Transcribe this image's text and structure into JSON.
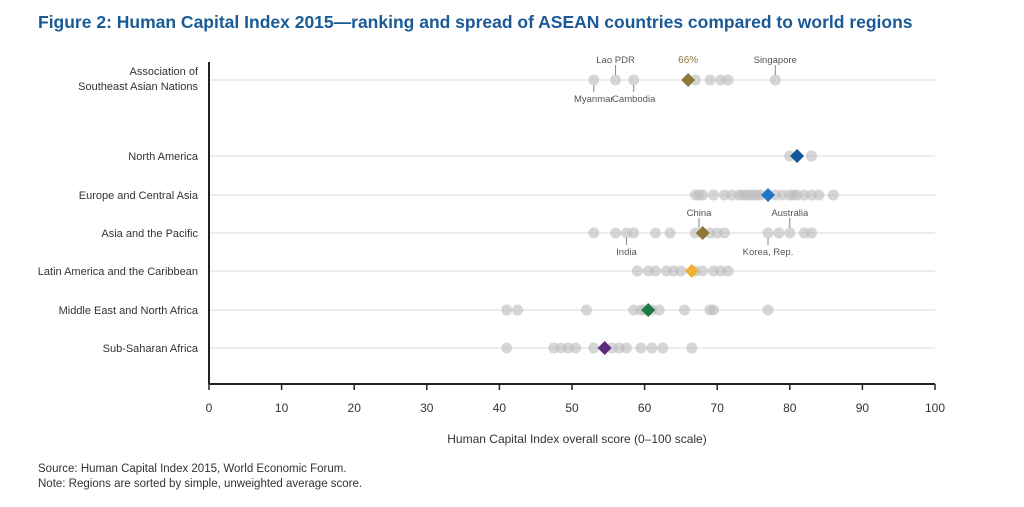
{
  "title": "Figure 2: Human Capital Index 2015—ranking and spread of ASEAN countries compared to world regions",
  "notes": {
    "source": "Source: Human Capital Index 2015, World Economic Forum.",
    "note": "Note: Regions are sorted by simple, unweighted average score."
  },
  "colors": {
    "asean": "#8c7a3a",
    "asia_pacific": "#8c7a3a",
    "north_america": "#15539a",
    "europe": "#2278c4",
    "latin_america": "#f0b030",
    "mena": "#1e7a45",
    "ssa": "#5c2e7a",
    "country_dot": "#bdbdbd",
    "grid": "#d9d9d9",
    "axis": "#222222"
  },
  "chart_data": {
    "type": "scatter",
    "xlabel": "Human Capital Index overall score (0–100 scale)",
    "xlim": [
      0,
      100
    ],
    "xticks": [
      0,
      10,
      20,
      30,
      40,
      50,
      60,
      70,
      80,
      90,
      100
    ],
    "grid": "horizontal row lines",
    "series": [
      {
        "name": "Association of Southeast Asian Nations",
        "label_lines": [
          "Association of",
          "Southeast Asian Nations"
        ],
        "average": 66,
        "average_label": "66%",
        "color": "asean",
        "countries": [
          53,
          56,
          58.5,
          67,
          69,
          70.5,
          71.5,
          78
        ],
        "annotations": [
          {
            "text": "Lao PDR",
            "x": 56,
            "pos": "above"
          },
          {
            "text": "Singapore",
            "x": 78,
            "pos": "above"
          },
          {
            "text": "Myanmar",
            "x": 53,
            "pos": "below"
          },
          {
            "text": "Cambodia",
            "x": 58.5,
            "pos": "below"
          }
        ]
      },
      {
        "name": "North America",
        "average": 81,
        "color": "north_america",
        "countries": [
          80,
          83
        ]
      },
      {
        "name": "Europe and Central Asia",
        "average": 77,
        "color": "europe",
        "countries": [
          67,
          67.5,
          68,
          69.5,
          71,
          72,
          73,
          73.5,
          74,
          74.5,
          75,
          75.5,
          76,
          78,
          79,
          80,
          80.5,
          81,
          82,
          83,
          84,
          86
        ]
      },
      {
        "name": "Asia and the Pacific",
        "average": 68,
        "color": "asia_pacific",
        "countries": [
          53,
          56,
          57.5,
          58.5,
          61.5,
          63.5,
          67,
          69,
          70,
          71,
          77,
          78.5,
          80,
          82,
          83
        ],
        "annotations": [
          {
            "text": "China",
            "x": 67.5,
            "pos": "above"
          },
          {
            "text": "Australia",
            "x": 80,
            "pos": "above"
          },
          {
            "text": "India",
            "x": 57.5,
            "pos": "below"
          },
          {
            "text": "Korea, Rep.",
            "x": 77,
            "pos": "below"
          }
        ]
      },
      {
        "name": "Latin America and the Caribbean",
        "average": 66.5,
        "color": "latin_america",
        "countries": [
          59,
          60.5,
          61.5,
          63,
          64,
          65,
          67,
          68,
          69.5,
          70.5,
          71.5
        ]
      },
      {
        "name": "Middle East and North Africa",
        "average": 60.5,
        "color": "mena",
        "countries": [
          41,
          42.5,
          52,
          58.5,
          59.5,
          60,
          61,
          62,
          65.5,
          69,
          69.5,
          77
        ]
      },
      {
        "name": "Sub-Saharan Africa",
        "average": 54.5,
        "color": "ssa",
        "countries": [
          41,
          47.5,
          48.5,
          49.5,
          50.5,
          53,
          55.5,
          56.5,
          57.5,
          59.5,
          61,
          62.5,
          66.5
        ]
      }
    ]
  }
}
